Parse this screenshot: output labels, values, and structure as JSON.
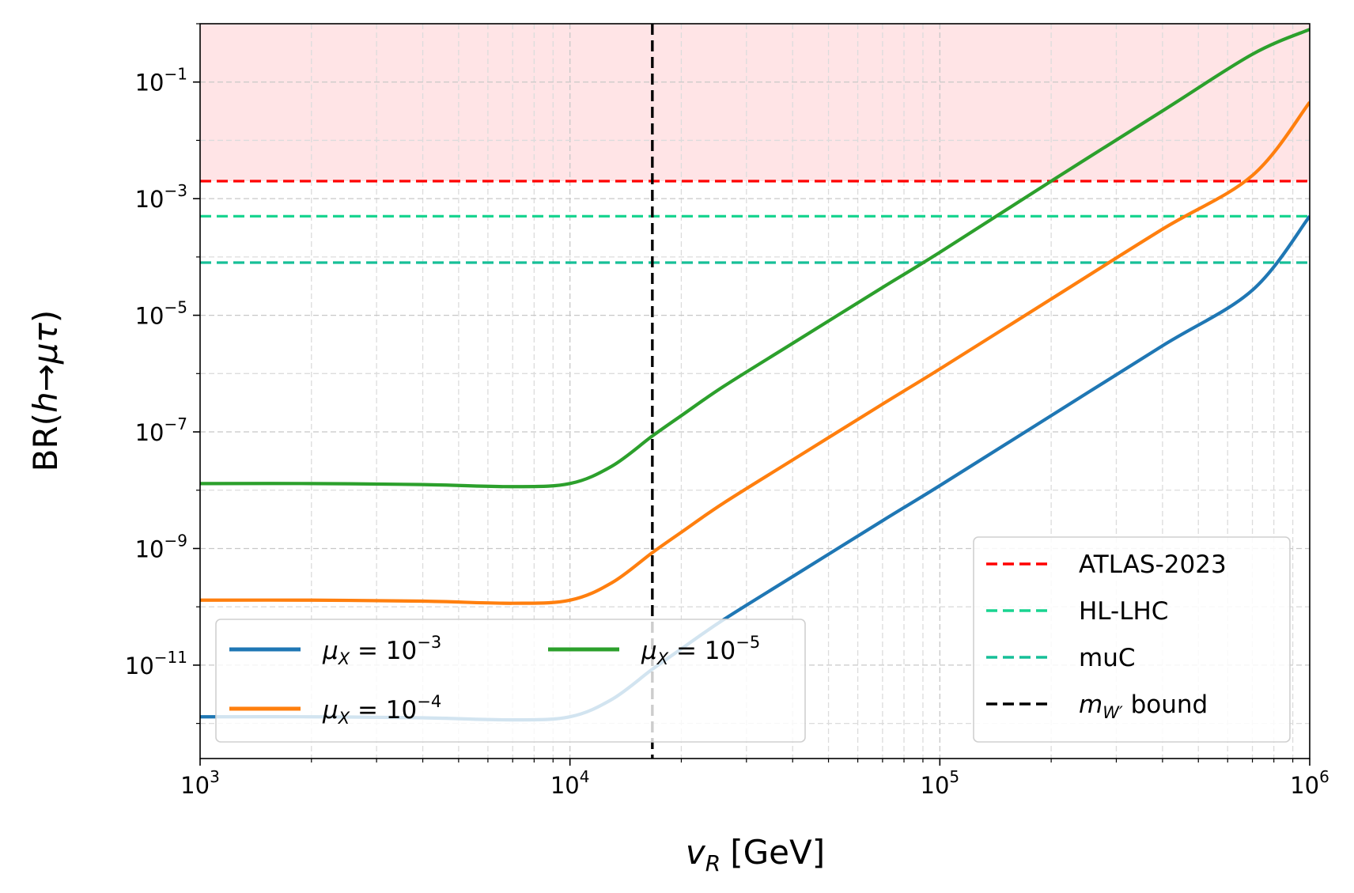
{
  "chart_data": {
    "type": "line",
    "title": "",
    "xlabel_main": "v",
    "xlabel_sub": "R",
    "xlabel_unit": "[GeV]",
    "ylabel_prefix": "BR(",
    "ylabel_h": "h",
    "ylabel_arrow": "→",
    "ylabel_mutau": "μτ",
    "ylabel_suffix": ")",
    "x_scale": "log",
    "y_scale": "log",
    "xlim": [
      1000,
      1000000
    ],
    "ylim": [
      2.5e-13,
      1.0
    ],
    "grid": true,
    "x_ticks": [
      {
        "value": 1000,
        "base": "10",
        "exp": "3"
      },
      {
        "value": 10000,
        "base": "10",
        "exp": "4"
      },
      {
        "value": 100000,
        "base": "10",
        "exp": "5"
      },
      {
        "value": 1000000,
        "base": "10",
        "exp": "6"
      }
    ],
    "y_ticks": [
      {
        "value": 1e-11,
        "base": "10",
        "exp": "−11"
      },
      {
        "value": 1e-09,
        "base": "10",
        "exp": "−9"
      },
      {
        "value": 1e-07,
        "base": "10",
        "exp": "−7"
      },
      {
        "value": 1e-05,
        "base": "10",
        "exp": "−5"
      },
      {
        "value": 0.001,
        "base": "10",
        "exp": "−3"
      },
      {
        "value": 0.1,
        "base": "10",
        "exp": "−1"
      }
    ],
    "excluded_region": {
      "from": 0.002,
      "to": 1.0,
      "color": "#ffe4e6"
    },
    "series": [
      {
        "name": "μX = 10−3",
        "label_mu": "μ",
        "label_sub": "X",
        "label_eq": " = 10",
        "label_exp": "−3",
        "color": "#1f77b4",
        "x": [
          1000,
          2000,
          4000,
          7000,
          10000,
          13000,
          16700,
          20000,
          26000,
          40000,
          70000,
          100000,
          200000,
          400000,
          700000,
          1000000
        ],
        "y": [
          1.3e-12,
          1.3e-12,
          1.25e-12,
          1.15e-12,
          1.3e-12,
          2.6e-12,
          8.5e-12,
          1.9e-11,
          6e-11,
          3.3e-10,
          3e-09,
          1.2e-08,
          1.9e-07,
          3e-06,
          2.7e-05,
          0.0005
        ]
      },
      {
        "name": "μX = 10−4",
        "label_mu": "μ",
        "label_sub": "X",
        "label_eq": " = 10",
        "label_exp": "−4",
        "color": "#ff7f0e",
        "x": [
          1000,
          2000,
          4000,
          7000,
          10000,
          13000,
          16700,
          20000,
          26000,
          40000,
          70000,
          100000,
          200000,
          400000,
          700000,
          1000000
        ],
        "y": [
          1.3e-10,
          1.3e-10,
          1.25e-10,
          1.15e-10,
          1.3e-10,
          2.6e-10,
          8.5e-10,
          1.9e-09,
          6e-09,
          3.3e-08,
          3e-07,
          1.2e-06,
          1.9e-05,
          0.0003,
          0.0025,
          0.045
        ]
      },
      {
        "name": "μX = 10−5",
        "label_mu": "μ",
        "label_sub": "X",
        "label_eq": " = 10",
        "label_exp": "−5",
        "color": "#2ca02c",
        "x": [
          1000,
          2000,
          4000,
          7000,
          10000,
          13000,
          16700,
          20000,
          26000,
          40000,
          70000,
          100000,
          200000,
          400000,
          700000,
          1000000
        ],
        "y": [
          1.3e-08,
          1.3e-08,
          1.25e-08,
          1.15e-08,
          1.3e-08,
          2.6e-08,
          8.5e-08,
          1.9e-07,
          6e-07,
          3.3e-06,
          3e-05,
          0.00012,
          0.002,
          0.032,
          0.3,
          0.8
        ]
      }
    ],
    "horizontal_lines": [
      {
        "name": "ATLAS-2023",
        "y": 0.002,
        "color": "#ff0000",
        "style": "dashed"
      },
      {
        "name": "HL-LHC",
        "y": 0.0005,
        "color": "#19d490",
        "style": "dashed"
      },
      {
        "name": "muC",
        "y": 8e-05,
        "color": "#17bf98",
        "style": "dashed"
      }
    ],
    "vertical_lines": [
      {
        "name": "mW′ bound",
        "x": 16700,
        "color": "#000000",
        "style": "dashed"
      }
    ],
    "legend_series": {
      "placement": "lower-left",
      "columns": 2
    },
    "legend_bounds": {
      "placement": "lower-right",
      "entries": [
        {
          "type": "text",
          "label": "ATLAS-2023",
          "color": "#ff0000"
        },
        {
          "type": "text",
          "label": "HL-LHC",
          "color": "#19d490"
        },
        {
          "type": "text",
          "label": "muC",
          "color": "#17bf98"
        },
        {
          "type": "mw",
          "label_m": "m",
          "label_sub": "W′",
          "label_rest": " bound",
          "color": "#000000"
        }
      ]
    }
  }
}
